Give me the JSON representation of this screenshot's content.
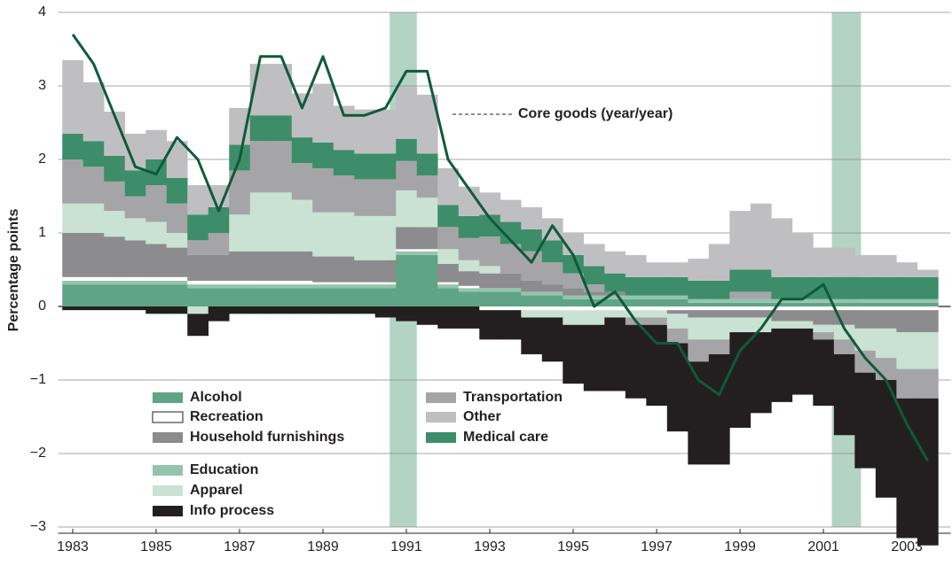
{
  "chart_data": {
    "type": "stacked-bar-line",
    "y_label": "Percentage points",
    "xlim": [
      1982.65,
      2004.05
    ],
    "xticks": [
      1983,
      1985,
      1987,
      1989,
      1991,
      1993,
      1995,
      1997,
      1999,
      2001,
      2003
    ],
    "ylim": [
      -3,
      4
    ],
    "yticks": [
      {
        "value": -3,
        "label": "−3"
      },
      {
        "value": -2,
        "label": "−2"
      },
      {
        "value": -1,
        "label": "−1"
      },
      0,
      1,
      2,
      3,
      4
    ],
    "grid": true,
    "shaded_periods": [
      [
        1990.6,
        1991.25
      ],
      [
        2001.2,
        2001.9
      ]
    ],
    "shade_color": "#b3d3c4",
    "x": [
      1983,
      1983.5,
      1984,
      1984.5,
      1985,
      1985.5,
      1986,
      1986.5,
      1987,
      1987.5,
      1988,
      1988.5,
      1989,
      1989.5,
      1990,
      1990.5,
      1991,
      1991.5,
      1992,
      1992.5,
      1993,
      1993.5,
      1994,
      1994.5,
      1995,
      1995.5,
      1996,
      1996.5,
      1997,
      1997.5,
      1998,
      1998.5,
      1999,
      1999.5,
      2000,
      2000.5,
      2001,
      2001.5,
      2002,
      2002.5,
      2003,
      2003.5
    ],
    "series": [
      {
        "name": "Alcohol",
        "color": "#5fa486",
        "values": [
          0.3,
          0.3,
          0.3,
          0.3,
          0.3,
          0.3,
          0.25,
          0.25,
          0.25,
          0.25,
          0.25,
          0.25,
          0.25,
          0.25,
          0.25,
          0.25,
          0.7,
          0.7,
          0.25,
          0.2,
          0.2,
          0.2,
          0.15,
          0.15,
          0.1,
          0.1,
          0.1,
          0.1,
          0.1,
          0.1,
          0.05,
          0.05,
          0.05,
          0.05,
          0.05,
          0.05,
          0.05,
          0.05,
          0.05,
          0.05,
          0.05,
          0.05
        ]
      },
      {
        "name": "Education",
        "color": "#94c4ad",
        "values": [
          0.05,
          0.05,
          0.05,
          0.05,
          0.05,
          0.05,
          0.05,
          0.05,
          0.05,
          0.05,
          0.05,
          0.05,
          0.05,
          0.05,
          0.05,
          0.05,
          0.05,
          0.05,
          0.05,
          0.05,
          0.05,
          0.05,
          0.05,
          0.05,
          0.05,
          0.05,
          0.05,
          0.05,
          0.05,
          0.05,
          0.05,
          0.05,
          0.05,
          0.05,
          0.05,
          0.05,
          0.05,
          0.05,
          0.05,
          0.05,
          0.05,
          0.05
        ]
      },
      {
        "name": "Recreation",
        "color": "#ffffff",
        "values": [
          0.05,
          0.05,
          0.05,
          0.05,
          0.05,
          0.05,
          0.05,
          0.05,
          0.05,
          0.05,
          0.05,
          0.05,
          0.03,
          0.03,
          0.03,
          0.03,
          0.03,
          0.03,
          0.03,
          0.03,
          -0.05,
          -0.05,
          -0.05,
          -0.05,
          -0.05,
          -0.05,
          -0.05,
          -0.05,
          -0.05,
          -0.05,
          -0.05,
          -0.05,
          -0.05,
          -0.05,
          -0.05,
          -0.05,
          -0.05,
          -0.05,
          -0.05,
          -0.05,
          -0.05,
          -0.05
        ]
      },
      {
        "name": "Household furnishings",
        "color": "#8c8c8e",
        "values": [
          0.6,
          0.6,
          0.55,
          0.5,
          0.45,
          0.4,
          0.35,
          0.35,
          0.4,
          0.4,
          0.4,
          0.4,
          0.35,
          0.35,
          0.3,
          0.3,
          0.3,
          0.3,
          0.25,
          0.2,
          0.2,
          0.2,
          0.15,
          0.1,
          0.1,
          0.05,
          0.05,
          0,
          0,
          -0.05,
          -0.1,
          -0.1,
          -0.1,
          -0.1,
          -0.15,
          -0.15,
          -0.2,
          -0.2,
          -0.25,
          -0.25,
          -0.3,
          -0.3
        ]
      },
      {
        "name": "Apparel",
        "color": "#c9e2d4",
        "values": [
          0.4,
          0.4,
          0.35,
          0.3,
          0.3,
          0.2,
          -0.1,
          0.0,
          0.5,
          0.8,
          0.8,
          0.7,
          0.6,
          0.6,
          0.6,
          0.6,
          0.5,
          0.4,
          0.2,
          0.15,
          0.1,
          0.0,
          -0.1,
          -0.1,
          -0.2,
          -0.2,
          -0.1,
          -0.1,
          -0.1,
          -0.2,
          -0.3,
          -0.3,
          -0.2,
          -0.2,
          -0.1,
          -0.1,
          -0.1,
          -0.2,
          -0.3,
          -0.4,
          -0.5,
          -0.5
        ]
      },
      {
        "name": "Transportation",
        "color": "#a5a5a7",
        "values": [
          0.6,
          0.5,
          0.4,
          0.3,
          0.5,
          0.4,
          0.2,
          0.3,
          0.6,
          0.7,
          0.7,
          0.5,
          0.6,
          0.5,
          0.5,
          0.5,
          0.4,
          0.3,
          0.3,
          0.3,
          0.4,
          0.4,
          0.4,
          0.3,
          0.2,
          0.1,
          0.0,
          -0.1,
          -0.1,
          -0.2,
          -0.3,
          -0.2,
          0.1,
          0.1,
          0.0,
          0.0,
          -0.1,
          -0.2,
          -0.3,
          -0.3,
          -0.4,
          -0.4
        ]
      },
      {
        "name": "Medical care",
        "color": "#3d8d6b",
        "values": [
          0.35,
          0.35,
          0.35,
          0.35,
          0.35,
          0.35,
          0.35,
          0.35,
          0.35,
          0.35,
          0.35,
          0.35,
          0.35,
          0.35,
          0.35,
          0.35,
          0.3,
          0.3,
          0.3,
          0.3,
          0.3,
          0.3,
          0.3,
          0.3,
          0.25,
          0.25,
          0.25,
          0.25,
          0.25,
          0.25,
          0.25,
          0.25,
          0.3,
          0.3,
          0.3,
          0.3,
          0.3,
          0.3,
          0.3,
          0.3,
          0.3,
          0.3
        ]
      },
      {
        "name": "Other",
        "color": "#bfbfc1",
        "values": [
          1.0,
          0.8,
          0.6,
          0.5,
          0.4,
          0.5,
          0.4,
          0.3,
          0.5,
          0.7,
          0.7,
          0.6,
          0.8,
          0.6,
          0.6,
          0.6,
          0.7,
          0.8,
          0.5,
          0.4,
          0.3,
          0.3,
          0.3,
          0.3,
          0.3,
          0.3,
          0.3,
          0.3,
          0.2,
          0.2,
          0.3,
          0.5,
          0.8,
          0.9,
          0.8,
          0.6,
          0.4,
          0.4,
          0.3,
          0.3,
          0.2,
          0.1
        ]
      },
      {
        "name": "Info process",
        "color": "#231f20",
        "values": [
          -0.05,
          -0.05,
          -0.05,
          -0.05,
          -0.1,
          -0.1,
          -0.3,
          -0.2,
          -0.1,
          -0.1,
          -0.1,
          -0.1,
          -0.1,
          -0.1,
          -0.1,
          -0.15,
          -0.2,
          -0.25,
          -0.3,
          -0.3,
          -0.4,
          -0.4,
          -0.5,
          -0.6,
          -0.8,
          -0.9,
          -1.0,
          -1.0,
          -1.1,
          -1.2,
          -1.4,
          -1.5,
          -1.3,
          -1.1,
          -1.0,
          -0.9,
          -0.9,
          -1.1,
          -1.3,
          -1.6,
          -1.9,
          -2.0
        ]
      }
    ],
    "core_goods": {
      "name": "Core goods (year/year)",
      "color": "#0f5a3a",
      "values": [
        3.7,
        3.3,
        2.6,
        1.9,
        1.8,
        2.3,
        2.0,
        1.3,
        2.0,
        3.4,
        3.4,
        2.7,
        3.4,
        2.6,
        2.6,
        2.7,
        3.2,
        3.2,
        2.0,
        1.6,
        1.2,
        0.9,
        0.6,
        1.1,
        0.7,
        0.0,
        0.2,
        -0.2,
        -0.5,
        -0.5,
        -1.0,
        -1.2,
        -0.6,
        -0.3,
        0.1,
        0.1,
        0.3,
        -0.3,
        -0.7,
        -1.0,
        -1.6,
        -2.1
      ]
    }
  }
}
